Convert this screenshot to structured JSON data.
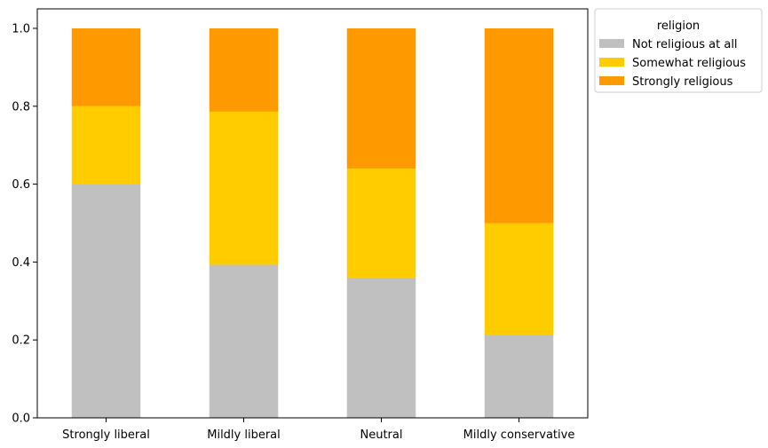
{
  "chart_data": {
    "type": "bar",
    "stacked": true,
    "categories": [
      "Strongly liberal",
      "Mildly liberal",
      "Neutral",
      "Mildly conservative"
    ],
    "series": [
      {
        "name": "Not religious at all",
        "values": [
          0.6,
          0.393,
          0.36,
          0.214
        ],
        "color": "#c0c0c0"
      },
      {
        "name": "Somewhat religious",
        "values": [
          0.2,
          0.393,
          0.28,
          0.286
        ],
        "color": "#ffcc00"
      },
      {
        "name": "Strongly religious",
        "values": [
          0.2,
          0.214,
          0.36,
          0.5
        ],
        "color": "#ff9900"
      }
    ],
    "ylim": [
      0,
      1.05
    ],
    "yticks": [
      0.0,
      0.2,
      0.4,
      0.6,
      0.8,
      1.0
    ],
    "ytick_labels": [
      "0.0",
      "0.2",
      "0.4",
      "0.6",
      "0.8",
      "1.0"
    ],
    "grid": false,
    "legend": {
      "title": "religion",
      "placement": "outside-top-right"
    }
  }
}
